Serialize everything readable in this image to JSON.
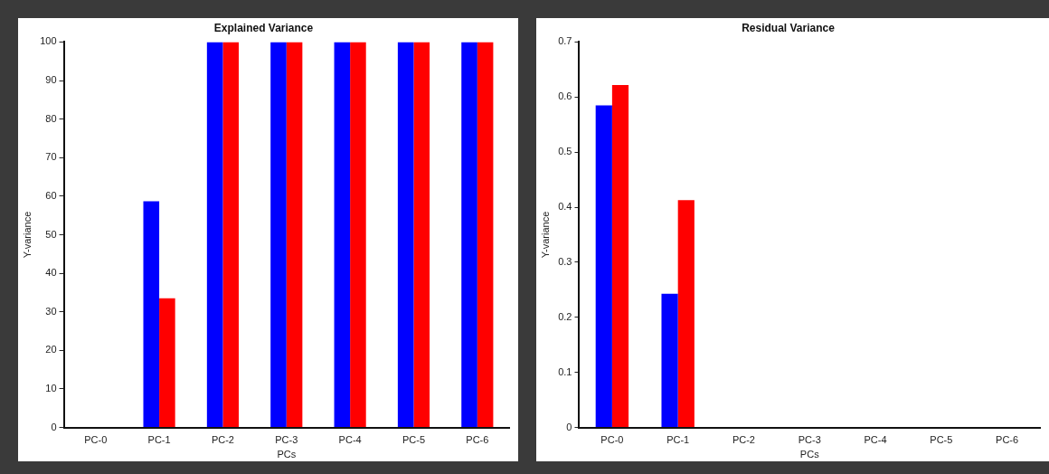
{
  "chart_data": [
    {
      "type": "bar",
      "title": "Explained Variance",
      "xlabel": "PCs",
      "ylabel": "Y-variance",
      "categories": [
        "PC-0",
        "PC-1",
        "PC-2",
        "PC-3",
        "PC-4",
        "PC-5",
        "PC-6"
      ],
      "series": [
        {
          "color": "#0000ff",
          "values": [
            0,
            58.7,
            100,
            100,
            100,
            100,
            100
          ]
        },
        {
          "color": "#ff0000",
          "values": [
            0,
            33.5,
            100,
            100,
            100,
            100,
            100
          ]
        }
      ],
      "ylim": [
        0,
        100
      ],
      "yticks": [
        0,
        10,
        20,
        30,
        40,
        50,
        60,
        70,
        80,
        90,
        100
      ],
      "grid": false,
      "legend": false
    },
    {
      "type": "bar",
      "title": "Residual Variance",
      "xlabel": "PCs",
      "ylabel": "Y-variance",
      "categories": [
        "PC-0",
        "PC-1",
        "PC-2",
        "PC-3",
        "PC-4",
        "PC-5",
        "PC-6"
      ],
      "series": [
        {
          "color": "#0000ff",
          "values": [
            0.585,
            0.243,
            0,
            0,
            0,
            0,
            0
          ]
        },
        {
          "color": "#ff0000",
          "values": [
            0.622,
            0.413,
            0,
            0,
            0,
            0,
            0
          ]
        }
      ],
      "ylim": [
        0,
        0.7
      ],
      "yticks": [
        0,
        0.1,
        0.2,
        0.3,
        0.4,
        0.5,
        0.6,
        0.7
      ],
      "grid": false,
      "legend": false
    }
  ]
}
